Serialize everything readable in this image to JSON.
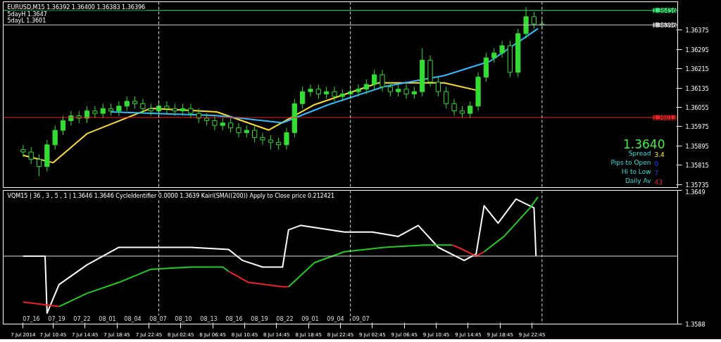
{
  "chart_data": [
    {
      "type": "candlestick",
      "title": "EURUSD,M15  1.36392 1.36400 1.36383 1.36396",
      "color": "#33dd33",
      "tick_labels": "y",
      "xlim": [
        "2014-07-07T04:30",
        "2014-07-10T17:00"
      ],
      "ylim": [
        1.35723,
        1.36492
      ],
      "yticks": [
        1.35735,
        1.35815,
        1.35895,
        1.35975,
        1.36055,
        1.36135,
        1.36215,
        1.36295,
        1.36375
      ],
      "x": [
        "2014-07-07T07:00",
        "2014-07-07T08:00",
        "2014-07-07T09:00",
        "2014-07-07T10:00",
        "2014-07-07T11:00",
        "2014-07-07T12:00",
        "2014-07-07T13:00",
        "2014-07-07T14:00",
        "2014-07-07T15:00",
        "2014-07-07T16:00",
        "2014-07-07T17:00",
        "2014-07-07T18:00",
        "2014-07-07T19:00",
        "2014-07-07T20:00",
        "2014-07-07T21:00",
        "2014-07-07T22:00",
        "2014-07-07T23:00",
        "2014-07-08T00:00",
        "2014-07-08T01:00",
        "2014-07-08T02:00",
        "2014-07-08T03:00",
        "2014-07-08T04:00",
        "2014-07-08T05:00",
        "2014-07-08T06:00",
        "2014-07-08T07:00",
        "2014-07-08T08:00",
        "2014-07-08T09:00",
        "2014-07-08T10:00",
        "2014-07-08T11:00",
        "2014-07-08T12:00",
        "2014-07-08T13:00",
        "2014-07-08T14:00",
        "2014-07-08T15:00",
        "2014-07-08T16:00",
        "2014-07-08T17:00",
        "2014-07-08T18:00",
        "2014-07-08T19:00",
        "2014-07-08T20:00",
        "2014-07-08T21:00",
        "2014-07-08T22:00",
        "2014-07-08T23:00",
        "2014-07-09T00:00",
        "2014-07-09T01:00",
        "2014-07-09T02:00",
        "2014-07-09T03:00",
        "2014-07-09T04:00",
        "2014-07-09T05:00",
        "2014-07-09T06:00",
        "2014-07-09T07:00",
        "2014-07-09T08:00",
        "2014-07-09T09:00",
        "2014-07-09T10:00",
        "2014-07-09T11:00",
        "2014-07-09T12:00",
        "2014-07-09T13:00",
        "2014-07-09T14:00",
        "2014-07-09T15:00",
        "2014-07-09T16:00",
        "2014-07-09T17:00",
        "2014-07-09T18:00",
        "2014-07-09T19:00",
        "2014-07-09T20:00",
        "2014-07-09T21:00",
        "2014-07-09T22:00",
        "2014-07-09T23:00",
        "2014-07-10T00:00"
      ],
      "ohlc": [
        [
          1.3588,
          1.359,
          1.3585,
          1.3587
        ],
        [
          1.3587,
          1.3589,
          1.3582,
          1.3584
        ],
        [
          1.3584,
          1.3586,
          1.3577,
          1.3581
        ],
        [
          1.3581,
          1.3592,
          1.3579,
          1.359
        ],
        [
          1.359,
          1.3598,
          1.3588,
          1.3596
        ],
        [
          1.3596,
          1.3602,
          1.3594,
          1.36
        ],
        [
          1.36,
          1.3604,
          1.3598,
          1.3602
        ],
        [
          1.3602,
          1.3604,
          1.3599,
          1.3601
        ],
        [
          1.3601,
          1.3606,
          1.3599,
          1.3604
        ],
        [
          1.3604,
          1.3606,
          1.3601,
          1.3603
        ],
        [
          1.3603,
          1.3607,
          1.3601,
          1.3605
        ],
        [
          1.3605,
          1.3607,
          1.3602,
          1.3604
        ],
        [
          1.3604,
          1.3608,
          1.3602,
          1.3606
        ],
        [
          1.3606,
          1.361,
          1.3604,
          1.3608
        ],
        [
          1.3608,
          1.361,
          1.3605,
          1.3607
        ],
        [
          1.3607,
          1.3609,
          1.3603,
          1.3605
        ],
        [
          1.3605,
          1.3607,
          1.3602,
          1.3604
        ],
        [
          1.3604,
          1.3608,
          1.3602,
          1.3606
        ],
        [
          1.3606,
          1.3608,
          1.3603,
          1.3605
        ],
        [
          1.3605,
          1.3607,
          1.3602,
          1.3604
        ],
        [
          1.3604,
          1.3607,
          1.3602,
          1.3605
        ],
        [
          1.3605,
          1.3607,
          1.3601,
          1.3603
        ],
        [
          1.3603,
          1.3605,
          1.3599,
          1.3601
        ],
        [
          1.3601,
          1.3603,
          1.3598,
          1.36
        ],
        [
          1.36,
          1.3602,
          1.3596,
          1.3598
        ],
        [
          1.3598,
          1.3601,
          1.3596,
          1.3599
        ],
        [
          1.3599,
          1.3601,
          1.3595,
          1.3597
        ],
        [
          1.3597,
          1.3599,
          1.3593,
          1.3595
        ],
        [
          1.3595,
          1.3598,
          1.3593,
          1.3596
        ],
        [
          1.3596,
          1.3598,
          1.3591,
          1.3593
        ],
        [
          1.3593,
          1.3595,
          1.359,
          1.3592
        ],
        [
          1.3592,
          1.3594,
          1.3588,
          1.3591
        ],
        [
          1.3591,
          1.3593,
          1.3588,
          1.359
        ],
        [
          1.359,
          1.3597,
          1.3588,
          1.3595
        ],
        [
          1.3595,
          1.3609,
          1.3593,
          1.3607
        ],
        [
          1.3607,
          1.3614,
          1.3605,
          1.3612
        ],
        [
          1.3612,
          1.3615,
          1.361,
          1.3613
        ],
        [
          1.3613,
          1.3615,
          1.3609,
          1.3611
        ],
        [
          1.3611,
          1.3614,
          1.3609,
          1.3612
        ],
        [
          1.3612,
          1.3614,
          1.3608,
          1.361
        ],
        [
          1.361,
          1.3613,
          1.3608,
          1.3611
        ],
        [
          1.3611,
          1.3614,
          1.3609,
          1.3612
        ],
        [
          1.3612,
          1.3615,
          1.361,
          1.3613
        ],
        [
          1.3613,
          1.3617,
          1.3611,
          1.3615
        ],
        [
          1.3615,
          1.3621,
          1.3613,
          1.3619
        ],
        [
          1.3619,
          1.3621,
          1.3612,
          1.3614
        ],
        [
          1.3614,
          1.3616,
          1.361,
          1.3612
        ],
        [
          1.3612,
          1.3615,
          1.361,
          1.3613
        ],
        [
          1.3613,
          1.3615,
          1.3609,
          1.3611
        ],
        [
          1.3611,
          1.3614,
          1.3609,
          1.3612
        ],
        [
          1.3612,
          1.363,
          1.361,
          1.3625
        ],
        [
          1.3625,
          1.3627,
          1.3614,
          1.3616
        ],
        [
          1.3616,
          1.3618,
          1.361,
          1.3612
        ],
        [
          1.3612,
          1.3614,
          1.3605,
          1.3607
        ],
        [
          1.3607,
          1.3609,
          1.3602,
          1.3604
        ],
        [
          1.3604,
          1.3606,
          1.3601,
          1.3603
        ],
        [
          1.3603,
          1.3608,
          1.3601,
          1.3606
        ],
        [
          1.3606,
          1.362,
          1.3604,
          1.3618
        ],
        [
          1.3618,
          1.3628,
          1.3616,
          1.3626
        ],
        [
          1.3626,
          1.363,
          1.3624,
          1.3628
        ],
        [
          1.3628,
          1.3633,
          1.3626,
          1.3631
        ],
        [
          1.3631,
          1.3633,
          1.3618,
          1.362
        ],
        [
          1.362,
          1.3638,
          1.3618,
          1.3636
        ],
        [
          1.3636,
          1.3647,
          1.3634,
          1.3643
        ],
        [
          1.3643,
          1.3645,
          1.3638,
          1.364
        ],
        [
          1.364,
          1.3642,
          1.3638,
          1.36396
        ]
      ],
      "series": [
        {
          "type": "line",
          "color": "#ffdd33",
          "x": [
            "2014-07-07T07:00",
            "2014-07-07T10:45",
            "2014-07-07T15:00",
            "2014-07-07T23:00",
            "2014-07-08T07:15",
            "2014-07-08T13:45",
            "2014-07-08T19:30",
            "2014-07-09T03:30",
            "2014-07-09T11:45",
            "2014-07-09T15:45"
          ],
          "values": [
            1.35856,
            1.35826,
            1.35946,
            1.36051,
            1.36036,
            1.35961,
            1.36066,
            1.36156,
            1.36156,
            1.36126
          ]
        },
        {
          "type": "line",
          "color": "#33bbff",
          "x": [
            "2014-07-07T18:00",
            "2014-07-08T07:15",
            "2014-07-08T15:30",
            "2014-07-08T21:15",
            "2014-07-09T04:15",
            "2014-07-09T11:45",
            "2014-07-09T17:30",
            "2014-07-09T23:30"
          ],
          "values": [
            1.36036,
            1.36021,
            1.35991,
            1.36066,
            1.36141,
            1.36186,
            1.36246,
            1.36381
          ]
        }
      ],
      "ref_lines": [
        {
          "axis": "y",
          "value": 1.36456,
          "label": "1.36456",
          "color": "#33ee77"
        },
        {
          "axis": "y",
          "value": 1.36396,
          "label": "1.36396",
          "color": "#cccccc"
        },
        {
          "axis": "y",
          "value": 1.36013,
          "label": "1.36013",
          "color": "#ee2222"
        },
        {
          "axis": "x",
          "value": "2014-07-08T00:00",
          "label": null,
          "color": "#dddddd",
          "line_style": "dashed"
        },
        {
          "axis": "x",
          "value": "2014-07-09T00:00",
          "label": null,
          "color": "#dddddd",
          "line_style": "dashed"
        },
        {
          "axis": "x",
          "value": "2014-07-10T00:00",
          "label": null,
          "color": "#dddddd",
          "line_style": "dashed"
        }
      ],
      "annotations": [
        "5dayH 1.3647",
        "5dayL 1.3601",
        "1.3640",
        "Spread",
        "3.4",
        "Pips to Open",
        "0",
        "Hi to Low",
        "7",
        "Daily Av",
        "43"
      ]
    },
    {
      "type": "line",
      "title": "VQM15 | 36 , 3 , 5 , 1 | 1.3646 1.3646 CycleIdentifier 0.0000 1.3639 Kairi(SMA((200)) Apply to Close price 0.212421",
      "xlim": [
        "2014-07-07T04:30",
        "2014-07-10T17:00"
      ],
      "ylim": [
        1.3588,
        1.3649
      ],
      "yticks": [
        1.3588,
        1.3649
      ],
      "xticks": [
        {
          "value": "2014-07-07T07:00",
          "label": "7 Jul 2014"
        },
        {
          "value": "2014-07-07T10:45",
          "label": "7 Jul 10:45"
        },
        {
          "value": "2014-07-07T14:45",
          "label": "7 Jul 14:45"
        },
        {
          "value": "2014-07-07T18:45",
          "label": "7 Jul 18:45"
        },
        {
          "value": "2014-07-07T22:45",
          "label": "7 Jul 22:45"
        },
        {
          "value": "2014-07-08T02:45",
          "label": "8 Jul 02:45"
        },
        {
          "value": "2014-07-08T06:45",
          "label": "8 Jul 06:45"
        },
        {
          "value": "2014-07-08T10:45",
          "label": "8 Jul 10:45"
        },
        {
          "value": "2014-07-08T14:45",
          "label": "8 Jul 14:45"
        },
        {
          "value": "2014-07-08T18:45",
          "label": "8 Jul 18:45"
        },
        {
          "value": "2014-07-08T22:45",
          "label": "8 Jul 22:45"
        },
        {
          "value": "2014-07-09T02:45",
          "label": "9 Jul 02:45"
        },
        {
          "value": "2014-07-09T06:45",
          "label": "9 Jul 06:45"
        },
        {
          "value": "2014-07-09T10:45",
          "label": "9 Jul 10:45"
        },
        {
          "value": "2014-07-09T14:45",
          "label": "9 Jul 14:45"
        },
        {
          "value": "2014-07-09T18:45",
          "label": "9 Jul 18:45"
        },
        {
          "value": "2014-07-09T22:45",
          "label": "9 Jul 22:45"
        }
      ],
      "series": [
        {
          "color": "#ffffff",
          "x": [
            "2014-07-07T07:00",
            "2014-07-07T09:45",
            "2014-07-07T10:00",
            "2014-07-07T11:30",
            "2014-07-07T15:00",
            "2014-07-07T19:00",
            "2014-07-07T23:00",
            "2014-07-08T04:00",
            "2014-07-08T08:45",
            "2014-07-08T10:30",
            "2014-07-08T13:00",
            "2014-07-08T15:30",
            "2014-07-08T16:15",
            "2014-07-08T17:45",
            "2014-07-08T23:15",
            "2014-07-09T02:45",
            "2014-07-09T06:00",
            "2014-07-09T08:30",
            "2014-07-09T11:00",
            "2014-07-09T14:15",
            "2014-07-09T15:45",
            "2014-07-09T16:45",
            "2014-07-09T18:30",
            "2014-07-09T20:45",
            "2014-07-09T23:00",
            "2014-07-09T23:15"
          ],
          "values": [
            1.3619,
            1.3619,
            1.3593,
            1.3606,
            1.3615,
            1.3623,
            1.3623,
            1.3623,
            1.3622,
            1.3617,
            1.3614,
            1.3614,
            1.3631,
            1.3633,
            1.363,
            1.363,
            1.3628,
            1.3633,
            1.3623,
            1.3617,
            1.362,
            1.3642,
            1.3634,
            1.3645,
            1.3641,
            1.3619
          ]
        },
        {
          "color": "#22cc22",
          "x": [
            "2014-07-07T11:30",
            "2014-07-07T15:00",
            "2014-07-07T19:00",
            "2014-07-07T23:00",
            "2014-07-08T04:00",
            "2014-07-08T08:00",
            "2014-07-08T08:45",
            "2014-07-08T11:15",
            "2014-07-08T15:30",
            "2014-07-08T16:15",
            "2014-07-08T19:30",
            "2014-07-08T23:15",
            "2014-07-09T04:15",
            "2014-07-09T09:15",
            "2014-07-09T12:45",
            "2014-07-09T13:30",
            "2014-07-09T15:45",
            "2014-07-09T16:45",
            "2014-07-09T19:15",
            "2014-07-09T22:30",
            "2014-07-09T23:30"
          ],
          "values": [
            1.3596,
            1.3602,
            1.3607,
            1.3613,
            1.3614,
            1.3614,
            1.3612,
            null,
            null,
            1.3605,
            1.3616,
            1.3621,
            1.3623,
            1.3624,
            1.3624,
            null,
            null,
            1.3621,
            1.3628,
            1.3641,
            1.3646
          ]
        },
        {
          "color": "#ee2222",
          "x": [
            "2014-07-07T07:00",
            "2014-07-07T11:30",
            "2014-07-07T15:00",
            "2014-07-07T19:00",
            "2014-07-07T23:00",
            "2014-07-08T04:00",
            "2014-07-08T08:00",
            "2014-07-08T08:45",
            "2014-07-08T11:15",
            "2014-07-08T15:30",
            "2014-07-08T16:15",
            "2014-07-08T19:30",
            "2014-07-08T23:15",
            "2014-07-09T04:15",
            "2014-07-09T09:15",
            "2014-07-09T12:45",
            "2014-07-09T13:30",
            "2014-07-09T15:45",
            "2014-07-09T16:45"
          ],
          "values": [
            1.3598,
            1.3596,
            null,
            null,
            null,
            null,
            null,
            1.3612,
            1.3607,
            1.3605,
            1.3605,
            null,
            null,
            null,
            null,
            1.3624,
            1.3623,
            1.3619,
            1.3621
          ]
        }
      ],
      "ref_lines": [
        {
          "axis": "y",
          "value": 1.3619,
          "label": null,
          "color": "#dddddd"
        },
        {
          "axis": "x",
          "value": "2014-07-08T00:00",
          "label": null,
          "color": "#dddddd",
          "line_style": "dashed"
        },
        {
          "axis": "x",
          "value": "2014-07-09T00:00",
          "label": null,
          "color": "#dddddd",
          "line_style": "dashed"
        },
        {
          "axis": "x",
          "value": "2014-07-10T00:00",
          "label": null,
          "color": "#dddddd",
          "line_style": "dashed"
        }
      ],
      "annotations": [
        "07_16",
        "07_19",
        "07_22",
        "08_01",
        "08_04",
        "08_07",
        "08_10",
        "08_13",
        "08_16",
        "08_19",
        "08_22",
        "09_01",
        "09_04",
        "09_07"
      ]
    }
  ]
}
